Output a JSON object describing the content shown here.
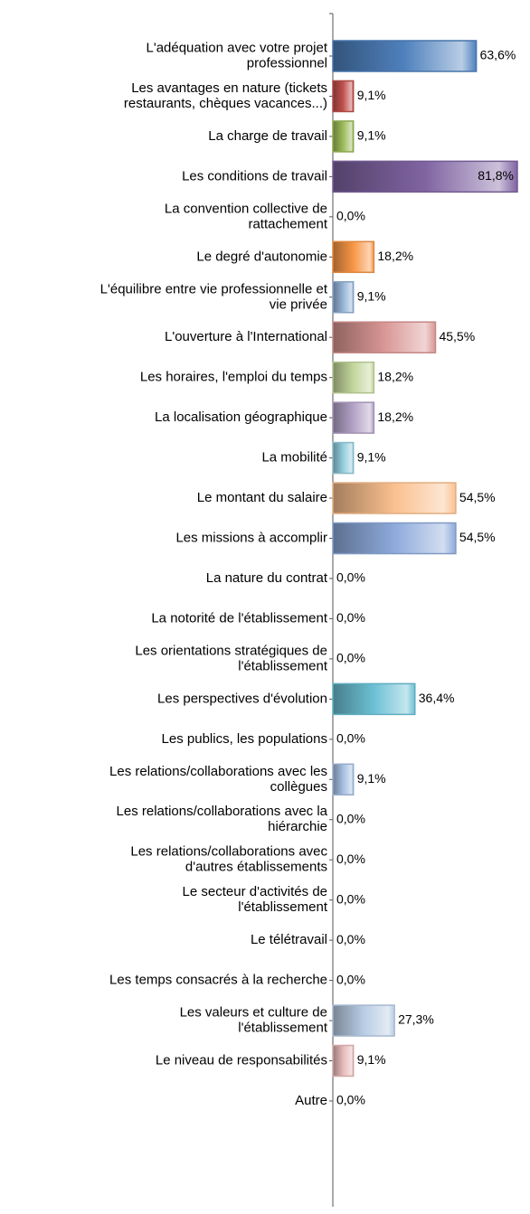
{
  "chart_data": {
    "type": "bar",
    "orientation": "horizontal",
    "categories": [
      "L'adéquation avec votre projet\nprofessionnel",
      "Les avantages en nature (tickets\nrestaurants, chèques vacances...)",
      "La charge de travail",
      "Les conditions de travail",
      "La convention collective de\nrattachement",
      "Le degré d'autonomie",
      "L'équilibre entre vie professionnelle et\nvie privée",
      "L'ouverture à l'International",
      "Les horaires, l'emploi du temps",
      "La localisation géographique",
      "La mobilité",
      "Le montant du salaire",
      "Les missions à accomplir",
      "La nature du contrat",
      "La notorité de l'établissement",
      "Les orientations stratégiques de\nl'établissement",
      "Les perspectives d'évolution",
      "Les publics, les populations",
      "Les relations/collaborations avec les\ncollègues",
      "Les relations/collaborations avec la\nhiérarchie",
      "Les relations/collaborations avec\nd'autres établissements",
      "Le secteur d'activités de\nl'établissement",
      "Le télétravail",
      "Les temps consacrés à la recherche",
      "Les valeurs et culture de\nl'établissement",
      "Le niveau de responsabilités",
      "Autre"
    ],
    "values": [
      63.6,
      9.1,
      9.1,
      81.8,
      0.0,
      18.2,
      9.1,
      45.5,
      18.2,
      18.2,
      9.1,
      54.5,
      54.5,
      0.0,
      0.0,
      0.0,
      36.4,
      0.0,
      9.1,
      0.0,
      0.0,
      0.0,
      0.0,
      0.0,
      27.3,
      9.1,
      0.0
    ],
    "value_labels": [
      "63,6%",
      "9,1%",
      "9,1%",
      "81,8%",
      "0,0%",
      "18,2%",
      "9,1%",
      "45,5%",
      "18,2%",
      "18,2%",
      "9,1%",
      "54,5%",
      "54,5%",
      "0,0%",
      "0,0%",
      "0,0%",
      "36,4%",
      "0,0%",
      "9,1%",
      "0,0%",
      "0,0%",
      "0,0%",
      "0,0%",
      "0,0%",
      "27,3%",
      "9,1%",
      "0,0%"
    ],
    "colors": [
      "#4f81bd",
      "#c0504d",
      "#9bbb59",
      "#8064a2",
      "#4bacc6",
      "#f79646",
      "#95b3d7",
      "#d99694",
      "#c3d69b",
      "#b3a2c7",
      "#93cddd",
      "#fac08f",
      "#8eaadb",
      "#4f81bd",
      "#c0504d",
      "#9bbb59",
      "#6cc0d4",
      "#f79646",
      "#a6bfe0",
      "#d99694",
      "#c3d69b",
      "#b3a2c7",
      "#93cddd",
      "#fac08f",
      "#b8cce4",
      "#e6b9b8",
      "#4f81bd"
    ]
  }
}
